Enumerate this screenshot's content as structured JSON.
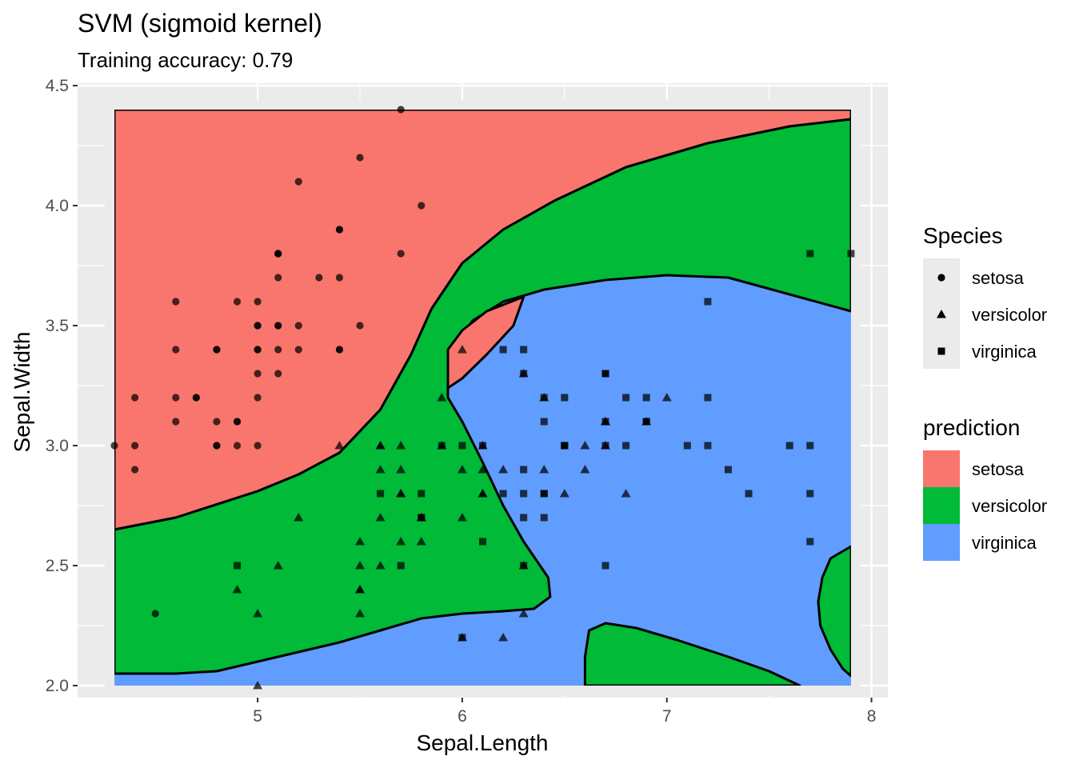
{
  "chart_data": {
    "type": "scatter",
    "title": "SVM (sigmoid kernel)",
    "subtitle": "Training accuracy: 0.79",
    "xlabel": "Sepal.Length",
    "ylabel": "Sepal.Width",
    "xlim": [
      4.3,
      7.9
    ],
    "ylim": [
      2.0,
      4.4
    ],
    "x_ticks": [
      5,
      6,
      7,
      8
    ],
    "y_ticks": [
      2.0,
      2.5,
      3.0,
      3.5,
      4.0,
      4.5
    ],
    "x_tick_labels": [
      "5",
      "6",
      "7",
      "8"
    ],
    "y_tick_labels": [
      "2.0",
      "2.5",
      "3.0",
      "3.5",
      "4.0",
      "4.5"
    ],
    "grid": true,
    "background": "#EBEBEB",
    "legends": {
      "shape": {
        "title": "Species",
        "entries": [
          {
            "label": "setosa",
            "shape": "circle"
          },
          {
            "label": "versicolor",
            "shape": "triangle"
          },
          {
            "label": "virginica",
            "shape": "square"
          }
        ]
      },
      "fill": {
        "title": "prediction",
        "entries": [
          {
            "label": "setosa",
            "color": "#F8766D"
          },
          {
            "label": "versicolor",
            "color": "#00BA38"
          },
          {
            "label": "virginica",
            "color": "#619CFF"
          }
        ]
      }
    },
    "legend_position": "right",
    "regions": [
      {
        "prediction": "setosa",
        "color": "#F8766D",
        "polygon": [
          [
            4.3,
            2.65
          ],
          [
            4.6,
            2.7
          ],
          [
            5.0,
            2.81
          ],
          [
            5.2,
            2.88
          ],
          [
            5.4,
            2.97
          ],
          [
            5.6,
            3.15
          ],
          [
            5.75,
            3.38
          ],
          [
            5.85,
            3.57
          ],
          [
            6.0,
            3.76
          ],
          [
            6.2,
            3.9
          ],
          [
            6.45,
            4.02
          ],
          [
            6.8,
            4.16
          ],
          [
            7.2,
            4.26
          ],
          [
            7.6,
            4.33
          ],
          [
            7.9,
            4.36
          ],
          [
            7.9,
            4.4
          ],
          [
            4.3,
            4.4
          ]
        ]
      },
      {
        "prediction": "versicolor",
        "color": "#00BA38",
        "polygon": [
          [
            4.3,
            2.05
          ],
          [
            4.6,
            2.05
          ],
          [
            4.8,
            2.06
          ],
          [
            5.0,
            2.1
          ],
          [
            5.2,
            2.14
          ],
          [
            5.4,
            2.18
          ],
          [
            5.6,
            2.23
          ],
          [
            5.8,
            2.28
          ],
          [
            6.0,
            2.3
          ],
          [
            6.2,
            2.31
          ],
          [
            6.35,
            2.32
          ],
          [
            6.43,
            2.37
          ],
          [
            6.42,
            2.45
          ],
          [
            6.3,
            2.6
          ],
          [
            6.2,
            2.75
          ],
          [
            6.1,
            2.93
          ],
          [
            6.0,
            3.1
          ],
          [
            5.93,
            3.2
          ],
          [
            5.93,
            3.3
          ],
          [
            5.96,
            3.4
          ],
          [
            6.05,
            3.52
          ],
          [
            6.2,
            3.6
          ],
          [
            6.4,
            3.65
          ],
          [
            6.7,
            3.69
          ],
          [
            7.0,
            3.71
          ],
          [
            7.3,
            3.7
          ],
          [
            7.6,
            3.63
          ],
          [
            7.9,
            3.56
          ],
          [
            7.9,
            4.36
          ],
          [
            7.6,
            4.33
          ],
          [
            7.2,
            4.26
          ],
          [
            6.8,
            4.16
          ],
          [
            6.45,
            4.02
          ],
          [
            6.2,
            3.9
          ],
          [
            6.0,
            3.76
          ],
          [
            5.85,
            3.57
          ],
          [
            5.75,
            3.38
          ],
          [
            5.6,
            3.15
          ],
          [
            5.4,
            2.97
          ],
          [
            5.2,
            2.88
          ],
          [
            5.0,
            2.81
          ],
          [
            4.6,
            2.7
          ],
          [
            4.3,
            2.65
          ]
        ]
      },
      {
        "prediction": "setosa",
        "color": "#F8766D",
        "polygon": [
          [
            5.93,
            3.24
          ],
          [
            5.93,
            3.4
          ],
          [
            6.0,
            3.48
          ],
          [
            6.12,
            3.56
          ],
          [
            6.3,
            3.62
          ],
          [
            6.25,
            3.5
          ],
          [
            6.12,
            3.38
          ],
          [
            6.0,
            3.28
          ]
        ]
      },
      {
        "prediction": "versicolor",
        "color": "#00BA38",
        "polygon": [
          [
            6.6,
            2.0
          ],
          [
            6.6,
            2.12
          ],
          [
            6.62,
            2.23
          ],
          [
            6.7,
            2.26
          ],
          [
            6.85,
            2.24
          ],
          [
            7.05,
            2.19
          ],
          [
            7.3,
            2.12
          ],
          [
            7.5,
            2.06
          ],
          [
            7.65,
            2.0
          ]
        ]
      },
      {
        "prediction": "versicolor",
        "color": "#00BA38",
        "polygon": [
          [
            7.9,
            2.58
          ],
          [
            7.8,
            2.53
          ],
          [
            7.76,
            2.45
          ],
          [
            7.74,
            2.35
          ],
          [
            7.75,
            2.25
          ],
          [
            7.8,
            2.15
          ],
          [
            7.86,
            2.07
          ],
          [
            7.9,
            2.04
          ]
        ]
      }
    ],
    "series": [
      {
        "name": "setosa",
        "shape": "circle",
        "points": [
          [
            5.1,
            3.5
          ],
          [
            4.9,
            3.0
          ],
          [
            4.7,
            3.2
          ],
          [
            4.6,
            3.1
          ],
          [
            5.0,
            3.6
          ],
          [
            5.4,
            3.9
          ],
          [
            4.6,
            3.4
          ],
          [
            5.0,
            3.4
          ],
          [
            4.4,
            2.9
          ],
          [
            4.9,
            3.1
          ],
          [
            5.4,
            3.7
          ],
          [
            4.8,
            3.4
          ],
          [
            4.8,
            3.0
          ],
          [
            4.3,
            3.0
          ],
          [
            5.8,
            4.0
          ],
          [
            5.7,
            4.4
          ],
          [
            5.4,
            3.9
          ],
          [
            5.1,
            3.5
          ],
          [
            5.7,
            3.8
          ],
          [
            5.1,
            3.8
          ],
          [
            5.4,
            3.4
          ],
          [
            5.1,
            3.7
          ],
          [
            4.6,
            3.6
          ],
          [
            5.1,
            3.3
          ],
          [
            4.8,
            3.4
          ],
          [
            5.0,
            3.0
          ],
          [
            5.0,
            3.4
          ],
          [
            5.2,
            3.5
          ],
          [
            5.2,
            3.4
          ],
          [
            4.7,
            3.2
          ],
          [
            4.8,
            3.1
          ],
          [
            5.4,
            3.4
          ],
          [
            5.2,
            4.1
          ],
          [
            5.5,
            4.2
          ],
          [
            4.9,
            3.1
          ],
          [
            5.0,
            3.2
          ],
          [
            5.5,
            3.5
          ],
          [
            4.9,
            3.6
          ],
          [
            4.4,
            3.0
          ],
          [
            5.1,
            3.4
          ],
          [
            5.0,
            3.5
          ],
          [
            4.5,
            2.3
          ],
          [
            4.4,
            3.2
          ],
          [
            5.0,
            3.5
          ],
          [
            5.1,
            3.8
          ],
          [
            4.8,
            3.0
          ],
          [
            5.1,
            3.8
          ],
          [
            4.6,
            3.2
          ],
          [
            5.3,
            3.7
          ],
          [
            5.0,
            3.3
          ]
        ]
      },
      {
        "name": "versicolor",
        "shape": "triangle",
        "points": [
          [
            7.0,
            3.2
          ],
          [
            6.4,
            3.2
          ],
          [
            6.9,
            3.1
          ],
          [
            5.5,
            2.3
          ],
          [
            6.5,
            2.8
          ],
          [
            5.7,
            2.8
          ],
          [
            6.3,
            3.3
          ],
          [
            4.9,
            2.4
          ],
          [
            6.6,
            2.9
          ],
          [
            5.2,
            2.7
          ],
          [
            5.0,
            2.0
          ],
          [
            5.9,
            3.0
          ],
          [
            6.0,
            2.2
          ],
          [
            6.1,
            2.9
          ],
          [
            5.6,
            2.9
          ],
          [
            6.7,
            3.1
          ],
          [
            5.6,
            3.0
          ],
          [
            5.8,
            2.7
          ],
          [
            6.2,
            2.2
          ],
          [
            5.6,
            2.5
          ],
          [
            5.9,
            3.2
          ],
          [
            6.1,
            2.8
          ],
          [
            6.3,
            2.5
          ],
          [
            6.1,
            2.8
          ],
          [
            6.4,
            2.9
          ],
          [
            6.6,
            3.0
          ],
          [
            6.8,
            2.8
          ],
          [
            6.7,
            3.0
          ],
          [
            6.0,
            2.9
          ],
          [
            5.7,
            2.6
          ],
          [
            5.5,
            2.4
          ],
          [
            5.5,
            2.4
          ],
          [
            5.8,
            2.7
          ],
          [
            6.0,
            2.7
          ],
          [
            5.4,
            3.0
          ],
          [
            6.0,
            3.4
          ],
          [
            6.7,
            3.1
          ],
          [
            6.3,
            2.3
          ],
          [
            5.6,
            3.0
          ],
          [
            5.5,
            2.5
          ],
          [
            5.5,
            2.6
          ],
          [
            6.1,
            3.0
          ],
          [
            5.8,
            2.6
          ],
          [
            5.0,
            2.3
          ],
          [
            5.6,
            2.7
          ],
          [
            5.7,
            3.0
          ],
          [
            5.7,
            2.9
          ],
          [
            6.2,
            2.9
          ],
          [
            5.1,
            2.5
          ],
          [
            5.7,
            2.8
          ]
        ]
      },
      {
        "name": "virginica",
        "shape": "square",
        "points": [
          [
            6.3,
            3.3
          ],
          [
            5.8,
            2.7
          ],
          [
            7.1,
            3.0
          ],
          [
            6.3,
            2.9
          ],
          [
            6.5,
            3.0
          ],
          [
            7.6,
            3.0
          ],
          [
            4.9,
            2.5
          ],
          [
            7.3,
            2.9
          ],
          [
            6.7,
            2.5
          ],
          [
            7.2,
            3.6
          ],
          [
            6.5,
            3.2
          ],
          [
            6.4,
            2.7
          ],
          [
            6.8,
            3.0
          ],
          [
            5.7,
            2.5
          ],
          [
            5.8,
            2.8
          ],
          [
            6.4,
            3.2
          ],
          [
            6.5,
            3.0
          ],
          [
            7.7,
            3.8
          ],
          [
            7.7,
            2.6
          ],
          [
            6.0,
            2.2
          ],
          [
            6.9,
            3.2
          ],
          [
            5.6,
            2.8
          ],
          [
            7.7,
            2.8
          ],
          [
            6.3,
            2.7
          ],
          [
            6.7,
            3.3
          ],
          [
            7.2,
            3.2
          ],
          [
            6.2,
            2.8
          ],
          [
            6.1,
            3.0
          ],
          [
            6.4,
            2.8
          ],
          [
            7.2,
            3.0
          ],
          [
            7.4,
            2.8
          ],
          [
            7.9,
            3.8
          ],
          [
            6.4,
            2.8
          ],
          [
            6.3,
            2.8
          ],
          [
            6.1,
            2.6
          ],
          [
            7.7,
            3.0
          ],
          [
            6.3,
            3.4
          ],
          [
            6.4,
            3.1
          ],
          [
            6.0,
            3.0
          ],
          [
            6.9,
            3.1
          ],
          [
            6.7,
            3.1
          ],
          [
            6.9,
            3.1
          ],
          [
            5.8,
            2.7
          ],
          [
            6.8,
            3.2
          ],
          [
            6.7,
            3.3
          ],
          [
            6.7,
            3.0
          ],
          [
            6.3,
            2.5
          ],
          [
            6.5,
            3.0
          ],
          [
            6.2,
            3.4
          ],
          [
            5.9,
            3.0
          ]
        ]
      }
    ]
  }
}
